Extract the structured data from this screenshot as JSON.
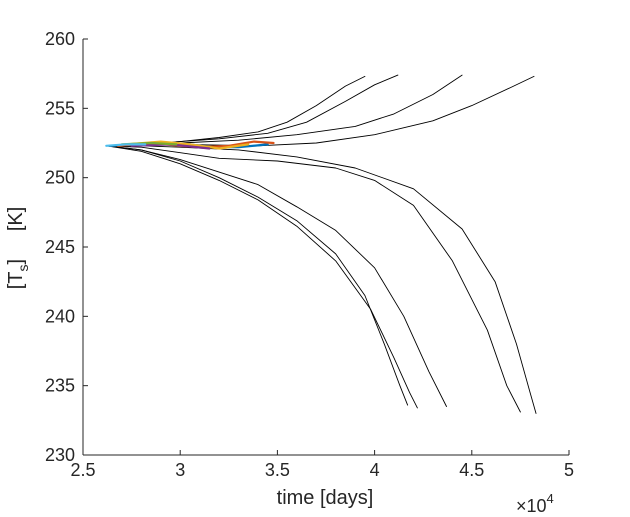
{
  "chart_data": {
    "type": "line",
    "xlabel": "time [days]",
    "ylabel_main": "[T",
    "ylabel_sub": "s",
    "ylabel_end": "]     [K]",
    "x_multiplier_prefix": "×10",
    "x_multiplier_exp": "4",
    "xlim": [
      2.5,
      5
    ],
    "ylim": [
      230,
      260
    ],
    "x_ticks": [
      2.5,
      3,
      3.5,
      4,
      4.5,
      5
    ],
    "x_tick_labels": [
      "2.5",
      "3",
      "3.5",
      "4",
      "4.5",
      "5"
    ],
    "y_ticks": [
      230,
      235,
      240,
      245,
      250,
      255,
      260
    ],
    "y_tick_labels": [
      "230",
      "235",
      "240",
      "245",
      "250",
      "255",
      "260"
    ],
    "grid": false,
    "legend": "none",
    "series": [
      {
        "color": "#000000",
        "points": [
          [
            2.62,
            252.3
          ],
          [
            2.8,
            252.4
          ],
          [
            3.0,
            252.6
          ],
          [
            3.2,
            252.9
          ],
          [
            3.4,
            253.3
          ],
          [
            3.55,
            254.0
          ],
          [
            3.7,
            255.2
          ],
          [
            3.85,
            256.6
          ],
          [
            3.95,
            257.3
          ]
        ]
      },
      {
        "color": "#000000",
        "points": [
          [
            2.62,
            252.3
          ],
          [
            2.8,
            252.4
          ],
          [
            3.0,
            252.6
          ],
          [
            3.2,
            252.8
          ],
          [
            3.45,
            253.2
          ],
          [
            3.65,
            254.0
          ],
          [
            3.85,
            255.5
          ],
          [
            4.0,
            256.7
          ],
          [
            4.12,
            257.4
          ]
        ]
      },
      {
        "color": "#000000",
        "points": [
          [
            2.62,
            252.3
          ],
          [
            2.8,
            252.4
          ],
          [
            3.0,
            252.5
          ],
          [
            3.3,
            252.7
          ],
          [
            3.6,
            253.1
          ],
          [
            3.9,
            253.7
          ],
          [
            4.1,
            254.6
          ],
          [
            4.3,
            256.0
          ],
          [
            4.45,
            257.4
          ]
        ]
      },
      {
        "color": "#000000",
        "points": [
          [
            2.62,
            252.3
          ],
          [
            2.8,
            252.4
          ],
          [
            3.0,
            252.4
          ],
          [
            3.4,
            252.3
          ],
          [
            3.7,
            252.5
          ],
          [
            4.0,
            253.1
          ],
          [
            4.3,
            254.1
          ],
          [
            4.5,
            255.2
          ],
          [
            4.7,
            256.5
          ],
          [
            4.82,
            257.3
          ]
        ]
      },
      {
        "color": "#000000",
        "points": [
          [
            2.62,
            252.3
          ],
          [
            2.8,
            252.0
          ],
          [
            3.0,
            251.2
          ],
          [
            3.2,
            250.0
          ],
          [
            3.4,
            248.6
          ],
          [
            3.6,
            246.9
          ],
          [
            3.8,
            244.5
          ],
          [
            3.95,
            241.5
          ],
          [
            4.05,
            238.0
          ],
          [
            4.13,
            235.0
          ],
          [
            4.17,
            233.6
          ]
        ]
      },
      {
        "color": "#000000",
        "points": [
          [
            2.62,
            252.3
          ],
          [
            2.8,
            251.9
          ],
          [
            3.0,
            251.0
          ],
          [
            3.2,
            249.8
          ],
          [
            3.4,
            248.4
          ],
          [
            3.6,
            246.5
          ],
          [
            3.8,
            244.0
          ],
          [
            3.98,
            240.5
          ],
          [
            4.1,
            237.0
          ],
          [
            4.18,
            234.5
          ],
          [
            4.22,
            233.4
          ]
        ]
      },
      {
        "color": "#000000",
        "points": [
          [
            2.62,
            252.3
          ],
          [
            2.8,
            252.0
          ],
          [
            3.0,
            251.3
          ],
          [
            3.2,
            250.4
          ],
          [
            3.4,
            249.5
          ],
          [
            3.6,
            247.9
          ],
          [
            3.8,
            246.2
          ],
          [
            4.0,
            243.5
          ],
          [
            4.15,
            240.0
          ],
          [
            4.28,
            236.0
          ],
          [
            4.37,
            233.5
          ]
        ]
      },
      {
        "color": "#000000",
        "points": [
          [
            2.62,
            252.3
          ],
          [
            2.8,
            252.2
          ],
          [
            3.0,
            251.8
          ],
          [
            3.2,
            251.4
          ],
          [
            3.5,
            251.2
          ],
          [
            3.8,
            250.7
          ],
          [
            4.0,
            249.8
          ],
          [
            4.2,
            248.0
          ],
          [
            4.4,
            244.0
          ],
          [
            4.58,
            239.0
          ],
          [
            4.68,
            235.0
          ],
          [
            4.75,
            233.1
          ]
        ]
      },
      {
        "color": "#000000",
        "points": [
          [
            2.62,
            252.3
          ],
          [
            2.8,
            252.3
          ],
          [
            3.0,
            252.2
          ],
          [
            3.3,
            252.0
          ],
          [
            3.6,
            251.5
          ],
          [
            3.9,
            250.7
          ],
          [
            4.2,
            249.2
          ],
          [
            4.45,
            246.3
          ],
          [
            4.62,
            242.5
          ],
          [
            4.73,
            238.0
          ],
          [
            4.8,
            234.5
          ],
          [
            4.83,
            233.0
          ]
        ]
      },
      {
        "color": "#0072BD",
        "points": [
          [
            2.64,
            252.3
          ],
          [
            2.75,
            252.4
          ],
          [
            2.9,
            252.5
          ],
          [
            3.05,
            252.4
          ],
          [
            3.15,
            252.2
          ],
          [
            3.3,
            252.2
          ],
          [
            3.45,
            252.4
          ]
        ]
      },
      {
        "color": "#D95319",
        "points": [
          [
            2.68,
            252.3
          ],
          [
            2.85,
            252.5
          ],
          [
            3.0,
            252.3
          ],
          [
            3.1,
            252.2
          ],
          [
            3.25,
            252.3
          ],
          [
            3.38,
            252.6
          ],
          [
            3.48,
            252.5
          ]
        ]
      },
      {
        "color": "#EDB120",
        "points": [
          [
            2.72,
            252.4
          ],
          [
            2.9,
            252.6
          ],
          [
            3.05,
            252.4
          ],
          [
            3.2,
            252.1
          ],
          [
            3.35,
            252.4
          ]
        ]
      },
      {
        "color": "#7E2F8E",
        "points": [
          [
            2.75,
            252.3
          ],
          [
            2.95,
            252.4
          ],
          [
            3.15,
            252.1
          ]
        ]
      },
      {
        "color": "#77AC30",
        "points": [
          [
            2.7,
            252.4
          ],
          [
            2.85,
            252.5
          ],
          [
            2.98,
            252.4
          ]
        ]
      },
      {
        "color": "#4DBEEE",
        "points": [
          [
            2.62,
            252.3
          ],
          [
            2.72,
            252.4
          ],
          [
            2.82,
            252.4
          ]
        ]
      }
    ]
  }
}
